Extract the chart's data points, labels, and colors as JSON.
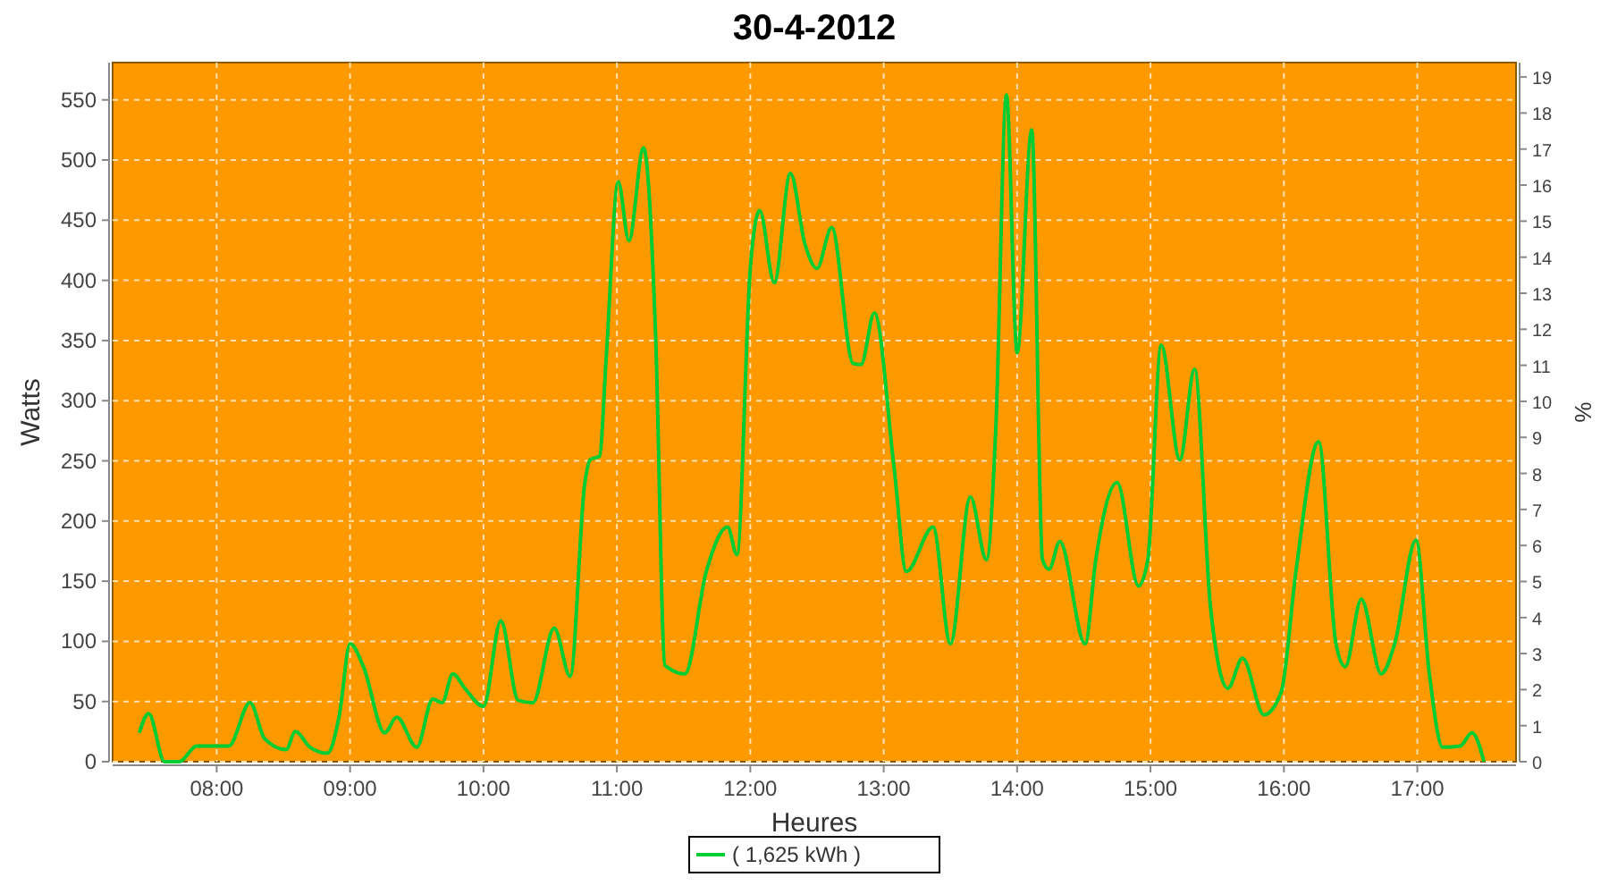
{
  "chart_data": {
    "type": "line",
    "title": "30-4-2012",
    "xlabel": "Heures",
    "ylabel": "Watts",
    "y2label": "%",
    "xlim": [
      7.22,
      17.74
    ],
    "ylim": [
      0,
      581
    ],
    "y2lim": [
      0,
      19.4
    ],
    "xticks": [
      {
        "value": 8,
        "label": "08:00"
      },
      {
        "value": 9,
        "label": "09:00"
      },
      {
        "value": 10,
        "label": "10:00"
      },
      {
        "value": 11,
        "label": "11:00"
      },
      {
        "value": 12,
        "label": "12:00"
      },
      {
        "value": 13,
        "label": "13:00"
      },
      {
        "value": 14,
        "label": "14:00"
      },
      {
        "value": 15,
        "label": "15:00"
      },
      {
        "value": 16,
        "label": "16:00"
      },
      {
        "value": 17,
        "label": "17:00"
      }
    ],
    "yticks": [
      0,
      50,
      100,
      150,
      200,
      250,
      300,
      350,
      400,
      450,
      500,
      550
    ],
    "y2ticks": [
      0,
      1,
      2,
      3,
      4,
      5,
      6,
      7,
      8,
      9,
      10,
      11,
      12,
      13,
      14,
      15,
      16,
      17,
      18,
      19
    ],
    "grid": true,
    "legend": "bottom",
    "marker": "none",
    "line_style": "solid",
    "series": [
      {
        "name": "( 1,625 kWh )",
        "color": "#00cc33",
        "x": [
          7.42,
          7.49,
          7.61,
          7.72,
          7.85,
          8.09,
          8.25,
          8.36,
          8.52,
          8.59,
          8.7,
          8.83,
          8.92,
          9.0,
          9.1,
          9.26,
          9.35,
          9.5,
          9.62,
          9.69,
          9.77,
          9.86,
          10.0,
          10.13,
          10.26,
          10.37,
          10.53,
          10.65,
          10.76,
          10.8,
          10.87,
          10.92,
          11.01,
          11.09,
          11.2,
          11.29,
          11.36,
          11.51,
          11.67,
          11.83,
          11.9,
          12.0,
          12.07,
          12.18,
          12.3,
          12.41,
          12.5,
          12.61,
          12.77,
          12.83,
          12.93,
          13.08,
          13.17,
          13.37,
          13.5,
          13.65,
          13.77,
          13.84,
          13.92,
          14.0,
          14.11,
          14.19,
          14.24,
          14.32,
          14.51,
          14.59,
          14.75,
          14.91,
          14.98,
          15.08,
          15.22,
          15.33,
          15.45,
          15.58,
          15.69,
          15.85,
          15.98,
          16.09,
          16.26,
          16.39,
          16.46,
          16.58,
          16.73,
          16.83,
          16.99,
          17.09,
          17.19,
          17.32,
          17.41,
          17.5
        ],
        "values": [
          24,
          40,
          0,
          0,
          13,
          13,
          49,
          19,
          10,
          25,
          12,
          7,
          39,
          98,
          79,
          24,
          37,
          12,
          52,
          49,
          73,
          61,
          46,
          117,
          51,
          49,
          111,
          71,
          232,
          251,
          254,
          336,
          482,
          433,
          510,
          355,
          80,
          73,
          158,
          195,
          172,
          410,
          458,
          398,
          489,
          430,
          410,
          444,
          331,
          330,
          373,
          242,
          158,
          195,
          98,
          220,
          168,
          276,
          554,
          340,
          525,
          168,
          160,
          183,
          98,
          168,
          232,
          146,
          168,
          346,
          251,
          326,
          128,
          61,
          86,
          39,
          58,
          158,
          266,
          98,
          79,
          135,
          73,
          98,
          184,
          73,
          12,
          13,
          24,
          0
        ]
      }
    ]
  }
}
